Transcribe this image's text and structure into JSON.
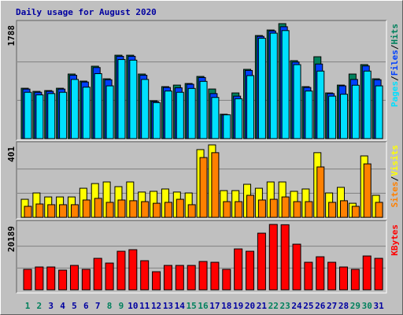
{
  "title": "Daily usage for August 2020",
  "legend_separator": "/",
  "chart_data": [
    {
      "type": "bar",
      "ylim": [
        0,
        1788
      ],
      "yticks": [
        1788
      ],
      "grid": true,
      "series": [
        {
          "name": "Hits",
          "color": "#00805c",
          "values": [
            783,
            734,
            747,
            783,
            1004,
            894,
            1126,
            930,
            1297,
            1297,
            1004,
            588,
            808,
            832,
            857,
            967,
            771,
            379,
            710,
            1077,
            1603,
            1689,
            1788,
            1212,
            808,
            1273,
            710,
            832,
            1004,
            1151,
            930
          ]
        },
        {
          "name": "Files",
          "color": "#0040ff",
          "values": [
            770,
            720,
            735,
            770,
            985,
            880,
            1105,
            915,
            1280,
            1280,
            985,
            575,
            795,
            790,
            845,
            950,
            700,
            370,
            660,
            1060,
            1590,
            1675,
            1740,
            1190,
            795,
            1160,
            700,
            820,
            920,
            1130,
            915
          ]
        },
        {
          "name": "Pages",
          "color": "#00e0ff",
          "values": [
            720,
            680,
            700,
            720,
            920,
            800,
            1010,
            820,
            1230,
            1220,
            920,
            560,
            740,
            720,
            780,
            890,
            640,
            370,
            620,
            980,
            1560,
            1640,
            1680,
            1150,
            740,
            1050,
            660,
            690,
            830,
            1050,
            820
          ]
        }
      ]
    },
    {
      "type": "bar",
      "ylim": [
        0,
        401
      ],
      "yticks": [
        401
      ],
      "grid": true,
      "series": [
        {
          "name": "Visits",
          "color": "#ffff00",
          "values": [
            100,
            135,
            113,
            113,
            113,
            161,
            187,
            196,
            170,
            196,
            140,
            144,
            157,
            140,
            135,
            375,
            401,
            148,
            148,
            183,
            161,
            196,
            196,
            144,
            157,
            358,
            135,
            166,
            78,
            340,
            122
          ]
        },
        {
          "name": "Sites",
          "color": "#ff8000",
          "values": [
            61,
            74,
            70,
            70,
            70,
            96,
            105,
            83,
            96,
            92,
            87,
            78,
            83,
            100,
            70,
            331,
            358,
            87,
            87,
            122,
            96,
            100,
            113,
            87,
            87,
            279,
            83,
            92,
            61,
            296,
            83
          ]
        }
      ]
    },
    {
      "type": "bar",
      "ylim": [
        0,
        20189
      ],
      "yticks": [
        20189
      ],
      "grid": true,
      "categories": [
        "1",
        "2",
        "3",
        "4",
        "5",
        "6",
        "7",
        "8",
        "9",
        "10",
        "11",
        "12",
        "13",
        "14",
        "15",
        "16",
        "17",
        "18",
        "19",
        "20",
        "21",
        "22",
        "23",
        "24",
        "25",
        "26",
        "27",
        "28",
        "29",
        "30",
        "31"
      ],
      "category_colors": [
        "#00805c",
        "#00805c",
        "#0000a0",
        "#0000a0",
        "#0000a0",
        "#0000a0",
        "#0000a0",
        "#00805c",
        "#00805c",
        "#0000a0",
        "#0000a0",
        "#0000a0",
        "#0000a0",
        "#0000a0",
        "#00805c",
        "#00805c",
        "#0000a0",
        "#0000a0",
        "#0000a0",
        "#0000a0",
        "#0000a0",
        "#00805c",
        "#00805c",
        "#0000a0",
        "#0000a0",
        "#0000a0",
        "#0000a0",
        "#0000a0",
        "#00805c",
        "#00805c",
        "#0000a0"
      ],
      "series": [
        {
          "name": "KBytes",
          "color": "#ff0000",
          "values": [
            6318,
            7047,
            7047,
            6075,
            7533,
            6318,
            9720,
            8262,
            11907,
            12393,
            8991,
            5589,
            7533,
            7533,
            7533,
            8748,
            8505,
            6318,
            12636,
            11907,
            17496,
            20189,
            20100,
            14094,
            8505,
            10206,
            8505,
            7047,
            6318,
            10449,
            9720
          ]
        }
      ]
    }
  ]
}
